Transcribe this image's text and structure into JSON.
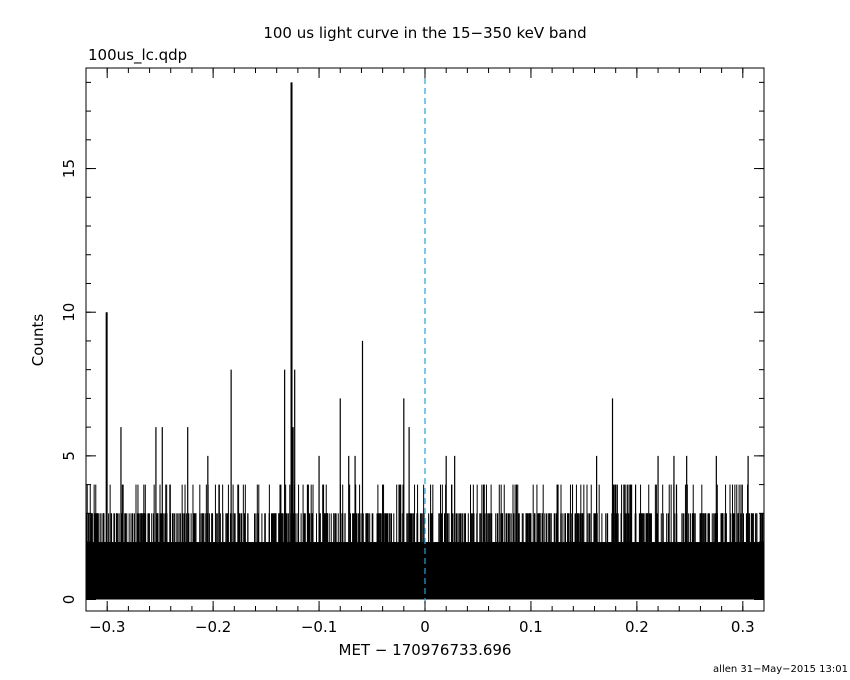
{
  "chart_data": {
    "type": "bar",
    "title": "100 us light curve in the 15−350 keV band",
    "file_label": "100us_lc.qdp",
    "xlabel": "MET − 170976733.696",
    "ylabel": "Counts",
    "footer": "allen 31−May−2015 13:01",
    "xlim": [
      -0.32,
      0.32
    ],
    "ylim": [
      -0.4,
      18.5
    ],
    "x_ticks": [
      {
        "value": -0.3,
        "label": "−0.3"
      },
      {
        "value": -0.2,
        "label": "−0.2"
      },
      {
        "value": -0.1,
        "label": "−0.1"
      },
      {
        "value": 0,
        "label": "0"
      },
      {
        "value": 0.1,
        "label": "0.1"
      },
      {
        "value": 0.2,
        "label": "0.2"
      },
      {
        "value": 0.3,
        "label": "0.3"
      }
    ],
    "y_ticks": [
      {
        "value": 0,
        "label": "0"
      },
      {
        "value": 5,
        "label": "5"
      },
      {
        "value": 10,
        "label": "10"
      },
      {
        "value": 15,
        "label": "15"
      }
    ],
    "trigger_line_x": 0,
    "bin_width": 0.0001,
    "baseline_counts": 2,
    "peaks": [
      {
        "x": -0.3005,
        "y": 10
      },
      {
        "x": -0.287,
        "y": 6
      },
      {
        "x": -0.254,
        "y": 6
      },
      {
        "x": -0.248,
        "y": 6
      },
      {
        "x": -0.224,
        "y": 6
      },
      {
        "x": -0.205,
        "y": 5
      },
      {
        "x": -0.183,
        "y": 8
      },
      {
        "x": -0.1325,
        "y": 8
      },
      {
        "x": -0.126,
        "y": 18
      },
      {
        "x": -0.1245,
        "y": 6
      },
      {
        "x": -0.123,
        "y": 8
      },
      {
        "x": -0.1,
        "y": 5
      },
      {
        "x": -0.08,
        "y": 7
      },
      {
        "x": -0.072,
        "y": 5
      },
      {
        "x": -0.066,
        "y": 5
      },
      {
        "x": -0.059,
        "y": 9
      },
      {
        "x": -0.02,
        "y": 7
      },
      {
        "x": -0.015,
        "y": 6
      },
      {
        "x": 0.02,
        "y": 5
      },
      {
        "x": 0.028,
        "y": 5
      },
      {
        "x": 0.162,
        "y": 5
      },
      {
        "x": 0.177,
        "y": 7
      },
      {
        "x": 0.22,
        "y": 5
      },
      {
        "x": 0.235,
        "y": 5
      },
      {
        "x": 0.247,
        "y": 5
      },
      {
        "x": 0.275,
        "y": 5
      },
      {
        "x": 0.305,
        "y": 5
      }
    ],
    "grid": false,
    "legend": "none",
    "colors": {
      "bars": "#000000",
      "trigger_line": "#2a9fd6",
      "axes": "#000000"
    }
  }
}
